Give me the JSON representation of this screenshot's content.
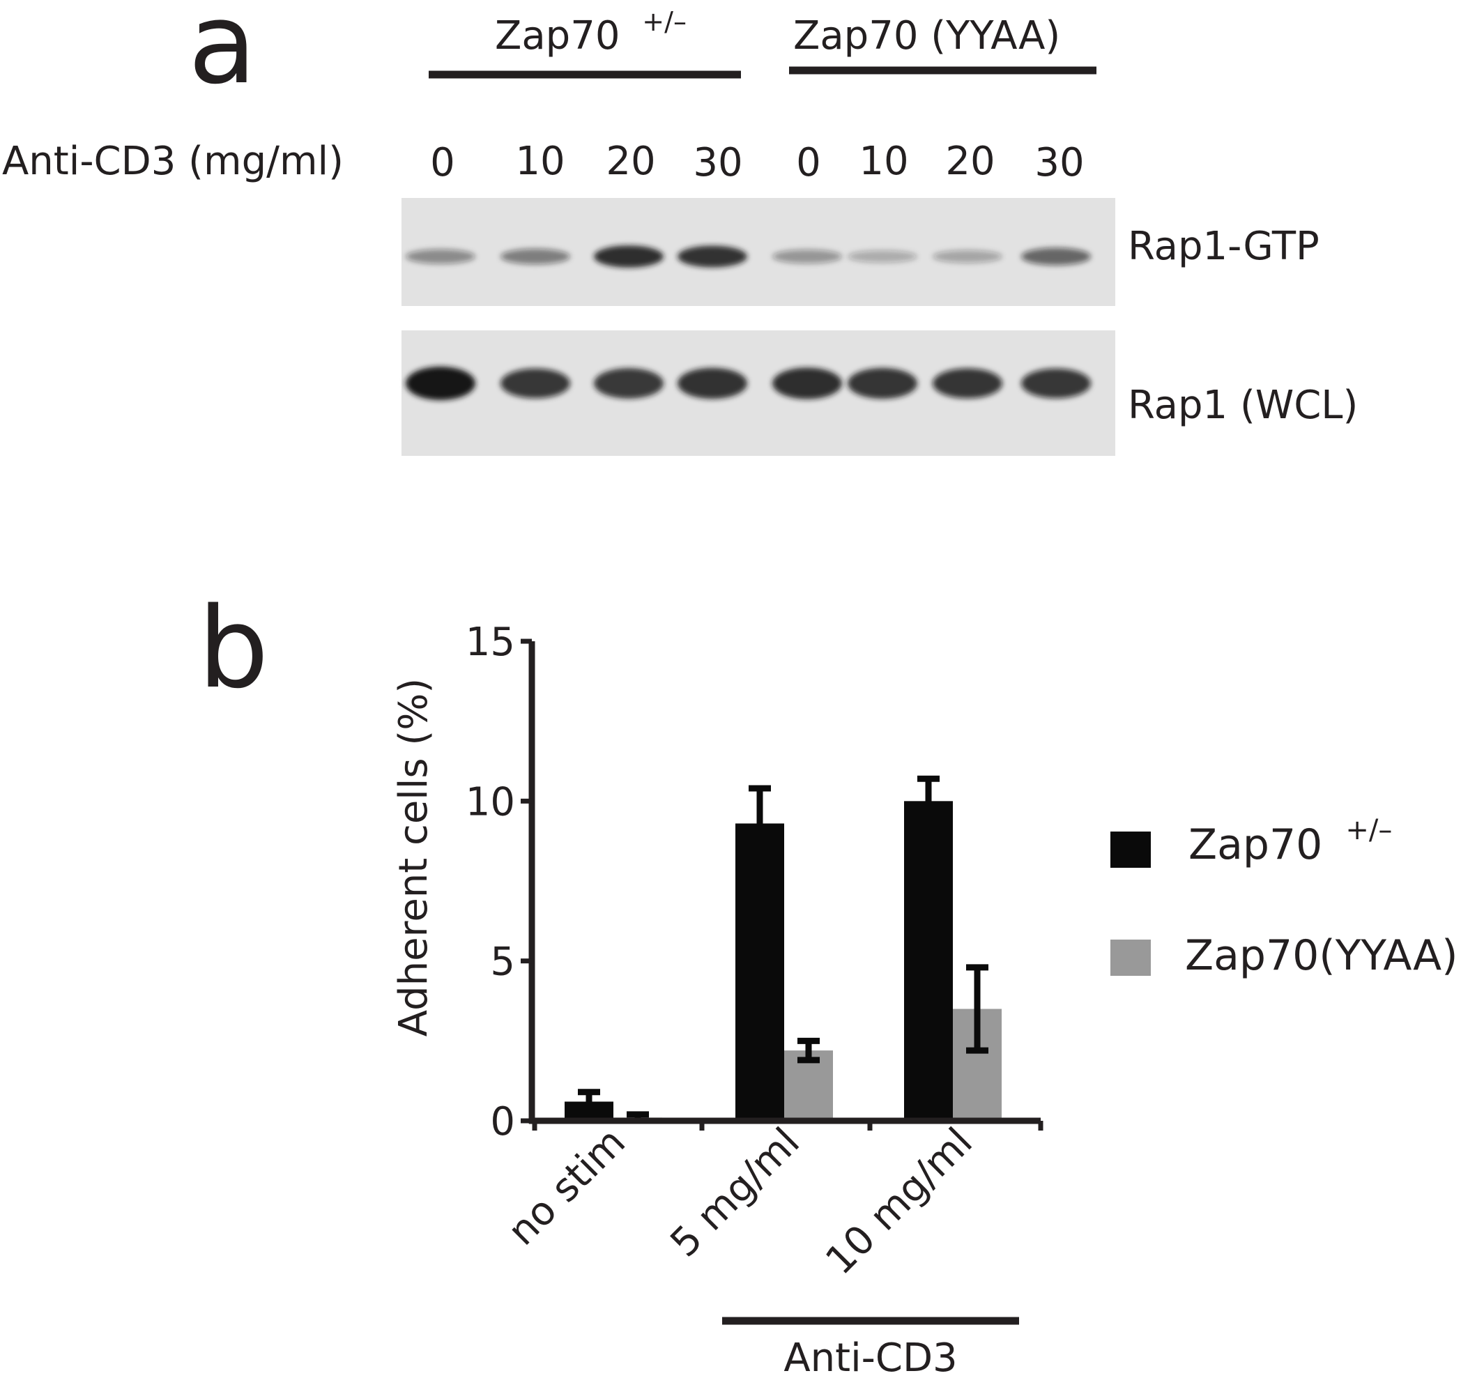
{
  "panel_a": {
    "letter": "a",
    "group_labels": [
      {
        "base": "Zap70",
        "superscript": "+/–"
      },
      {
        "base": "Zap70 (YYAA)",
        "superscript": ""
      }
    ],
    "row_label": "Anti-CD3 (mg/ml)",
    "lane_values": [
      "0",
      "10",
      "20",
      "30",
      "0",
      "10",
      "20",
      "30"
    ],
    "blots": [
      {
        "label": "Rap1-GTP",
        "band_intensity": [
          0.35,
          0.42,
          0.88,
          0.85,
          0.3,
          0.18,
          0.22,
          0.55
        ]
      },
      {
        "label": "Rap1 (WCL)",
        "band_intensity": [
          1.0,
          0.78,
          0.82,
          0.85,
          0.88,
          0.84,
          0.8,
          0.78
        ]
      }
    ]
  },
  "panel_b": {
    "letter": "b",
    "group_label": "Anti-CD3",
    "legend": [
      {
        "base": "Zap70",
        "superscript": "+/–"
      },
      {
        "base": "Zap70(YYAA)",
        "superscript": ""
      }
    ]
  },
  "colors": {
    "text": "#231f20",
    "series_1": "#0a0a0a",
    "series_2": "#999999",
    "blot_bg": "#e2e2e2",
    "band": "#141414"
  },
  "chart_data": {
    "type": "bar",
    "title": "",
    "xlabel": "",
    "ylabel": "Adherent cells (%)",
    "ylim": [
      0,
      15
    ],
    "yticks": [
      0,
      5,
      10,
      15
    ],
    "categories": [
      "no stim",
      "5 mg/ml",
      "10 mg/ml"
    ],
    "series": [
      {
        "name": "Zap70 +/–",
        "values": [
          0.6,
          9.3,
          10.0
        ],
        "errors": [
          0.3,
          1.1,
          0.7
        ]
      },
      {
        "name": "Zap70(YYAA)",
        "values": [
          0.1,
          2.2,
          3.5
        ],
        "errors": [
          0.1,
          0.3,
          1.3
        ]
      }
    ],
    "legend_position": "right",
    "grid": false
  }
}
